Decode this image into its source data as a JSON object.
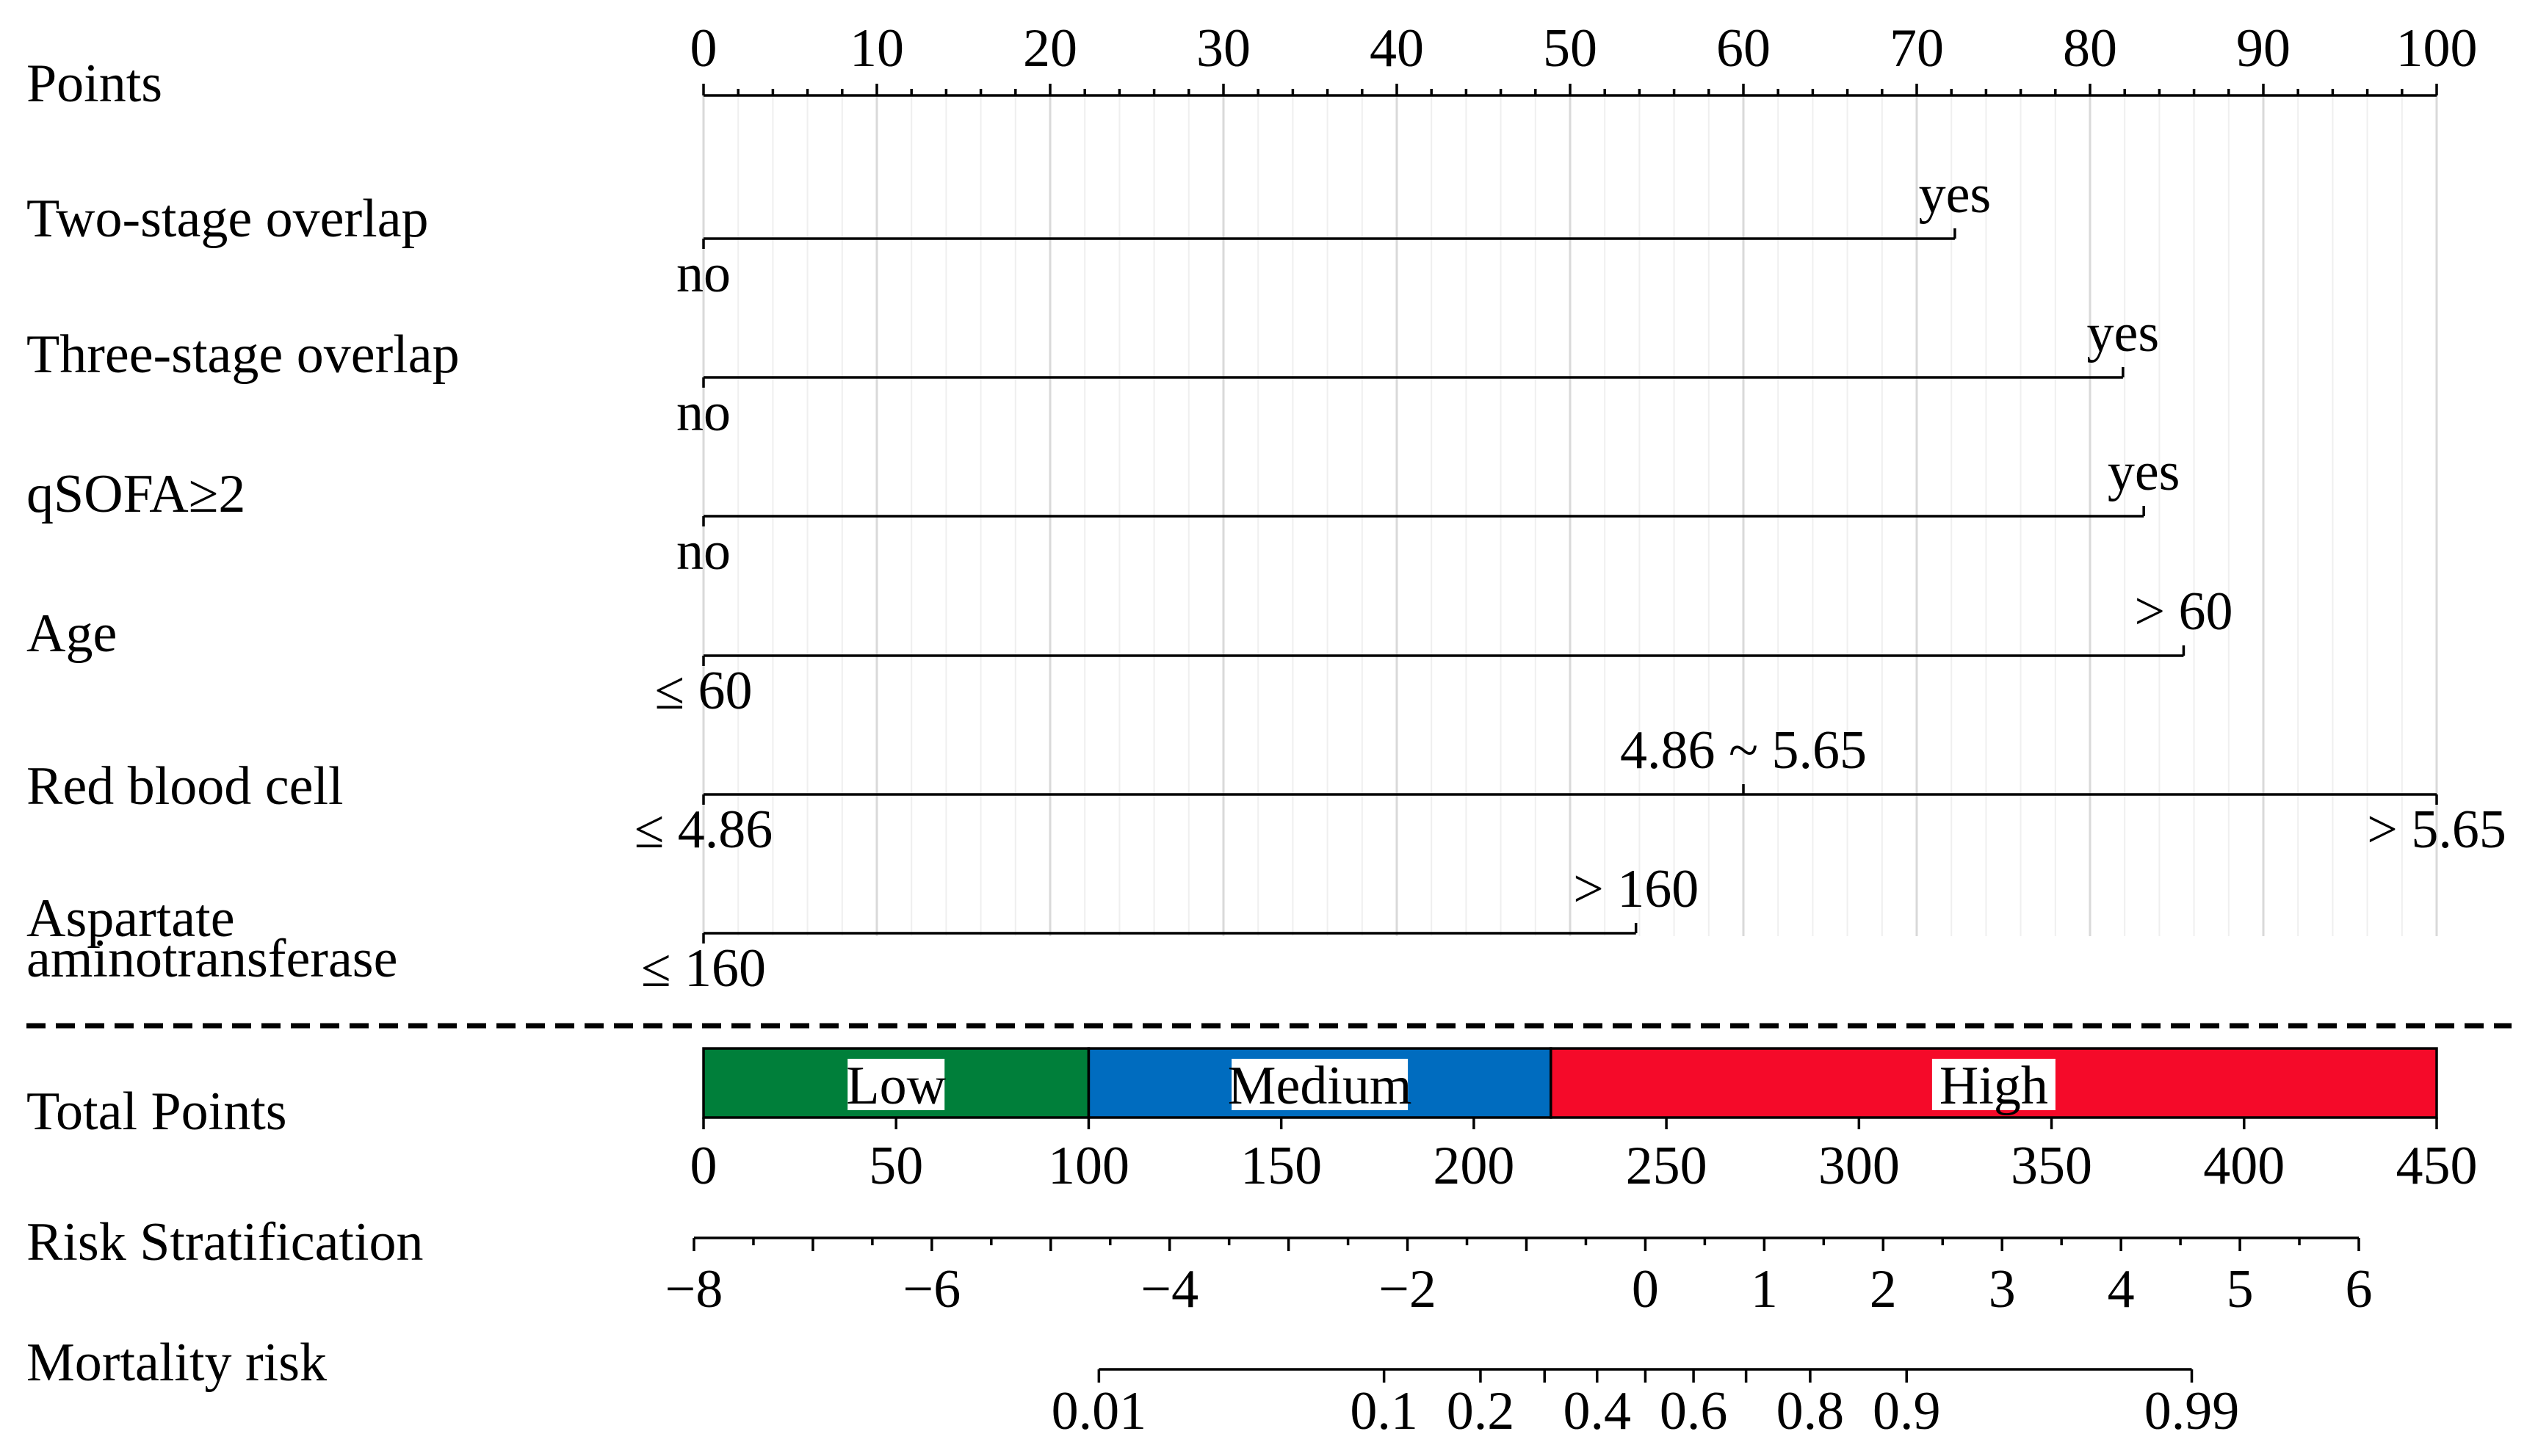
{
  "chart_data": {
    "type": "nomogram",
    "points_axis": {
      "label": "Points",
      "range": [
        0,
        100
      ],
      "major_ticks": [
        0,
        10,
        20,
        30,
        40,
        50,
        60,
        70,
        80,
        90,
        100
      ],
      "minor_step": 2
    },
    "variables": [
      {
        "label": "Two-stage overlap",
        "levels": [
          {
            "text": "no",
            "points": 0,
            "side": "below",
            "anchor": "middle"
          },
          {
            "text": "yes",
            "points": 72.2,
            "side": "above",
            "anchor": "middle"
          }
        ]
      },
      {
        "label": "Three-stage overlap",
        "levels": [
          {
            "text": "no",
            "points": 0,
            "side": "below",
            "anchor": "middle"
          },
          {
            "text": "yes",
            "points": 81.9,
            "side": "above",
            "anchor": "middle"
          }
        ]
      },
      {
        "label": "qSOFA≥2",
        "levels": [
          {
            "text": "no",
            "points": 0,
            "side": "below",
            "anchor": "middle"
          },
          {
            "text": "yes",
            "points": 83.1,
            "side": "above",
            "anchor": "middle"
          }
        ]
      },
      {
        "label": "Age",
        "levels": [
          {
            "text": "≤ 60",
            "points": 0,
            "side": "below",
            "anchor": "middle"
          },
          {
            "text": "> 60",
            "points": 85.4,
            "side": "above",
            "anchor": "middle"
          }
        ]
      },
      {
        "label": "Red blood cell",
        "levels": [
          {
            "text": "≤ 4.86",
            "points": 0,
            "side": "below",
            "anchor": "middle"
          },
          {
            "text": "4.86  ~  5.65",
            "points": 60,
            "side": "above",
            "anchor": "middle"
          },
          {
            "text": "> 5.65",
            "points": 100,
            "side": "below",
            "anchor": "middle"
          }
        ]
      },
      {
        "label_lines": [
          "Aspartate",
          "aminotransferase"
        ],
        "levels": [
          {
            "text": "≤ 160",
            "points": 0,
            "side": "below",
            "anchor": "middle"
          },
          {
            "text": "> 160",
            "points": 53.8,
            "side": "above",
            "anchor": "middle"
          }
        ]
      }
    ],
    "total_points": {
      "label": "Total Points",
      "range": [
        0,
        450
      ],
      "ticks": [
        0,
        50,
        100,
        150,
        200,
        250,
        300,
        350,
        400,
        450
      ],
      "bands": [
        {
          "name": "Low",
          "from": 0,
          "to": 100,
          "color": "#007f3a"
        },
        {
          "name": "Medium",
          "from": 100,
          "to": 220,
          "color": "#006cbf"
        },
        {
          "name": "High",
          "from": 220,
          "to": 450,
          "color": "#f50a29"
        }
      ]
    },
    "risk_stratification": {
      "label": "Risk Stratification",
      "range": [
        -8,
        6
      ],
      "ticks": [
        -8,
        -6,
        -4,
        -2,
        0,
        1,
        2,
        3,
        4,
        5,
        6
      ],
      "tick_labels": [
        "−8",
        "−6",
        "−4",
        "−2",
        "0",
        "1",
        "2",
        "3",
        "4",
        "5",
        "6"
      ],
      "minor_step": 0.5
    },
    "mortality_risk": {
      "label": "Mortality risk",
      "ticks": [
        0.01,
        0.1,
        0.2,
        0.3,
        0.4,
        0.5,
        0.6,
        0.7,
        0.8,
        0.9,
        0.99
      ],
      "labeled": [
        {
          "text": "0.01",
          "value": 0.01
        },
        {
          "text": "0.1",
          "value": 0.1
        },
        {
          "text": "0.2",
          "value": 0.2
        },
        {
          "text": "0.4",
          "value": 0.4
        },
        {
          "text": "0.6",
          "value": 0.6
        },
        {
          "text": "0.8",
          "value": 0.8
        },
        {
          "text": "0.9",
          "value": 0.9
        },
        {
          "text": "0.99",
          "value": 0.99
        }
      ]
    }
  }
}
